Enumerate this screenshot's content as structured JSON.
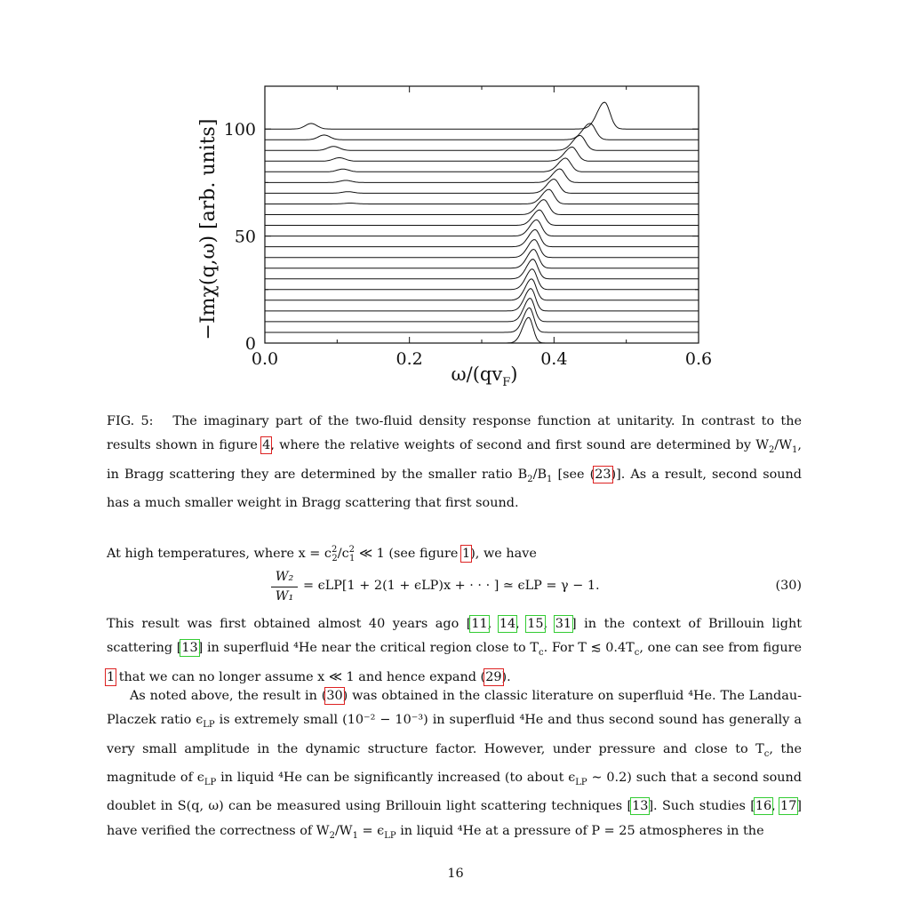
{
  "chart_data": {
    "type": "line",
    "xlabel": "ω/(qv",
    "xlabel_sub": "F",
    "xlabel_close": ")",
    "ylabel": "−Imχ(q,ω) [arb. units]",
    "xlim": [
      0.0,
      0.6
    ],
    "ylim": [
      0,
      120
    ],
    "x_ticks": [
      "0.0",
      "0.2",
      "0.4",
      "0.6"
    ],
    "y_ticks": [
      "0",
      "50",
      "100"
    ],
    "grid": false,
    "curve_count": 21,
    "curve_offset_step": 5,
    "first_sound_peaks": [
      0.365,
      0.366,
      0.367,
      0.368,
      0.369,
      0.37,
      0.371,
      0.372,
      0.373,
      0.374,
      0.376,
      0.38,
      0.386,
      0.393,
      0.4,
      0.408,
      0.416,
      0.425,
      0.436,
      0.45,
      0.47
    ],
    "first_sound_heights": [
      12,
      11.5,
      11,
      10.5,
      10,
      9.6,
      9.2,
      8.8,
      8.4,
      8.0,
      7.6,
      7.2,
      7.0,
      6.8,
      6.6,
      6.4,
      6.4,
      6.6,
      7.0,
      7.6,
      12.5
    ],
    "second_sound_peaks": [
      null,
      null,
      null,
      null,
      null,
      null,
      null,
      null,
      null,
      null,
      null,
      null,
      null,
      0.118,
      0.115,
      0.112,
      0.108,
      0.103,
      0.095,
      0.082,
      0.064
    ],
    "second_sound_heights": [
      0,
      0,
      0,
      0,
      0,
      0,
      0,
      0,
      0,
      0,
      0,
      0,
      0,
      0.4,
      0.7,
      1.0,
      1.3,
      1.6,
      1.9,
      2.2,
      2.6
    ]
  },
  "caption": {
    "label": "FIG. 5:",
    "t1": "The imaginary part of the two-fluid density response function at unitarity. In contrast to the results shown in figure",
    "ref1": "4",
    "t2": ", where the relative weights of second and first sound are determined by W",
    "t3": ", in Bragg scattering they are determined by the smaller ratio B",
    "t4": "[see (",
    "ref2": "23",
    "t5": ")]. As a result, second sound has a much smaller weight in Bragg scattering that first sound."
  },
  "para1": {
    "t1": "At high temperatures, where x = c",
    "t2": " ≪ 1 (see figure ",
    "ref1": "1",
    "t3": "), we have"
  },
  "equation": {
    "num": "W₂",
    "den": "W₁",
    "body": "= ϵLP[1 + 2(1 + ϵLP)x + · · · ] ≃ ϵLP = γ − 1.",
    "number": "(30)"
  },
  "para2": {
    "t1": "This result was first obtained almost 40 years ago [",
    "r1": "11",
    "r2": "14",
    "r3": "15",
    "r4": "31",
    "t2": "] in the context of Brillouin light scattering [",
    "r5": "13",
    "t3": "] in superfluid ⁴He near the critical region close to T",
    "t4": ". For T ≲ 0.4T",
    "t5": ", one can see from figure ",
    "r6": "1",
    "t6": " that we can no longer assume x ≪ 1 and hence expand (",
    "r7": "29",
    "t7": ")."
  },
  "para3": {
    "t1": "As noted above, the result in (",
    "r1": "30",
    "t2": ") was obtained in the classic literature on superfluid ⁴He. The Landau-Placzek ratio ϵ",
    "t3": " is extremely small (10⁻² − 10⁻³) in superfluid ⁴He and thus second sound has generally a very small amplitude in the dynamic structure factor. However, under pressure and close to T",
    "t4": ", the magnitude of ϵ",
    "t5": " in liquid ⁴He can be significantly increased (to about ϵ",
    "t6": " ∼ 0.2) such that a second sound doublet in S(q, ω) can be measured using Brillouin light scattering techniques [",
    "r2": "13",
    "t7": "]. Such studies [",
    "r3": "16",
    "r4": "17",
    "t8": "] have verified the correctness of W",
    "t9": " = ϵ",
    "t10": " in liquid ⁴He at a pressure of P = 25 atmospheres in the"
  },
  "page_number": "16"
}
